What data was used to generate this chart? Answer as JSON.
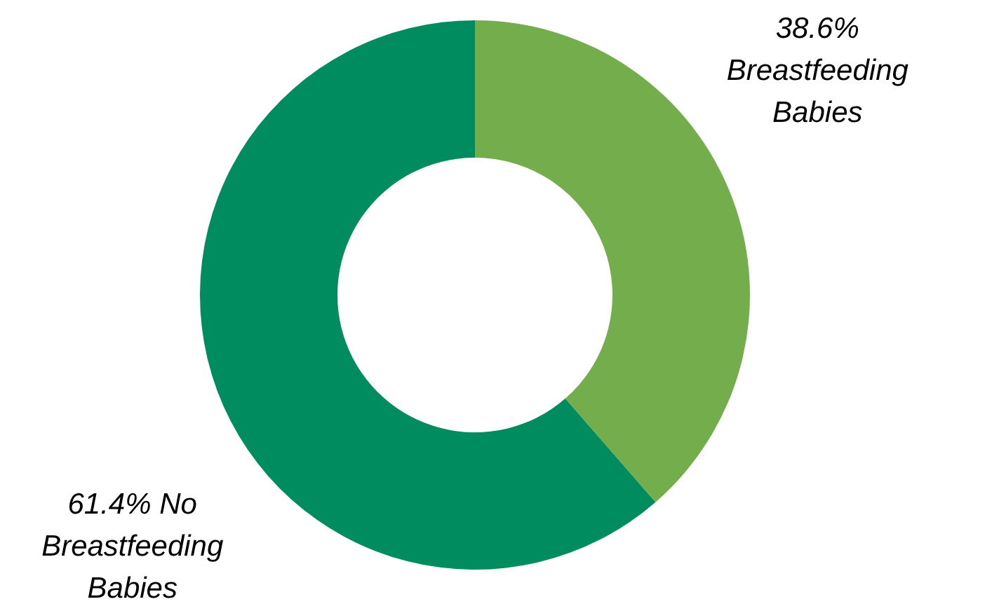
{
  "chart_data": {
    "type": "donut",
    "categories": [
      "Breastfeeding Babies",
      "No Breastfeeding Babies"
    ],
    "values": [
      38.6,
      61.4
    ],
    "colors": [
      "#74ad4b",
      "#008c5e"
    ],
    "value_labels": [
      "38.6%",
      "61.4%"
    ],
    "legend": false
  }
}
